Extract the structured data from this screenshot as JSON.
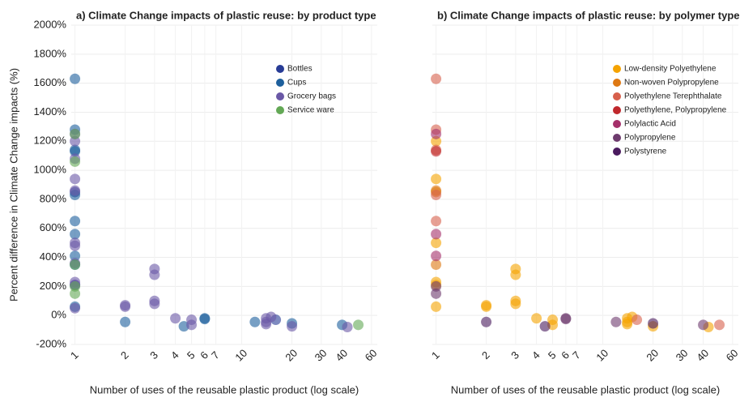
{
  "chart_data": [
    {
      "type": "scatter",
      "title": "a) Climate Change impacts of plastic reuse: by product type",
      "xlabel": "Number of uses of the reusable plastic product (log scale)",
      "ylabel": "Percent difference in Climate Change impacts (%)",
      "xscale": "log",
      "xlim": [
        0.95,
        65
      ],
      "ylim": [
        -200,
        2000
      ],
      "grid": true,
      "legend": "top-right",
      "xticks": [
        1,
        2,
        3,
        4,
        5,
        6,
        7,
        10,
        20,
        30,
        40,
        60
      ],
      "yticks": [
        {
          "value": -200,
          "label": "-200%"
        },
        {
          "value": 0,
          "label": "0%"
        },
        {
          "value": 200,
          "label": "200%"
        },
        {
          "value": 400,
          "label": "400%"
        },
        {
          "value": 600,
          "label": "600%"
        },
        {
          "value": 800,
          "label": "800%"
        },
        {
          "value": 1000,
          "label": "1000%"
        },
        {
          "value": 1200,
          "label": "1200%"
        },
        {
          "value": 1400,
          "label": "1400%"
        },
        {
          "value": 1600,
          "label": "1600%"
        },
        {
          "value": 1800,
          "label": "1800%"
        },
        {
          "value": 2000,
          "label": "2000%"
        }
      ],
      "series": [
        {
          "name": "Bottles",
          "color": "#283c96",
          "x": [
            1,
            1,
            16
          ],
          "values": [
            850,
            210,
            -30
          ]
        },
        {
          "name": "Cups",
          "color": "#1d5f9c",
          "x": [
            1,
            1,
            1,
            1,
            1,
            1,
            1,
            1,
            1,
            1,
            2,
            4.5,
            6,
            6,
            12,
            20,
            40
          ],
          "values": [
            1630,
            1280,
            1140,
            1130,
            830,
            650,
            560,
            410,
            350,
            60,
            -45,
            -75,
            -20,
            -25,
            -45,
            -55,
            -65
          ]
        },
        {
          "name": "Grocery bags",
          "color": "#6a58a6",
          "x": [
            1,
            1,
            1,
            1,
            1,
            1,
            1,
            1,
            1,
            1,
            1,
            2,
            2,
            3,
            3,
            3,
            3,
            4,
            5,
            5,
            14,
            14,
            14,
            15,
            20,
            43
          ],
          "values": [
            1200,
            1080,
            940,
            860,
            500,
            480,
            360,
            230,
            210,
            50,
            1250,
            70,
            60,
            320,
            280,
            100,
            80,
            -20,
            -30,
            -65,
            -20,
            -45,
            -60,
            -10,
            -75,
            -80
          ]
        },
        {
          "name": "Service ware",
          "color": "#63a855",
          "x": [
            1,
            1,
            1,
            1,
            1,
            50
          ],
          "values": [
            1250,
            1060,
            350,
            200,
            150,
            -65
          ]
        }
      ]
    },
    {
      "type": "scatter",
      "title": "b) Climate Change impacts of plastic reuse: by polymer type",
      "xlabel": "Number of uses of the reusable plastic product (log scale)",
      "xscale": "log",
      "xlim": [
        0.95,
        65
      ],
      "ylim": [
        -200,
        2000
      ],
      "grid": true,
      "legend": "top-right",
      "xticks": [
        1,
        2,
        3,
        4,
        5,
        6,
        7,
        10,
        20,
        30,
        40,
        60
      ],
      "yticks": [
        -200,
        0,
        200,
        400,
        600,
        800,
        1000,
        1200,
        1400,
        1600,
        1800,
        2000
      ],
      "series": [
        {
          "name": "Low-density Polyethylene",
          "color": "#f5a300",
          "x": [
            1,
            1,
            1,
            1,
            1,
            1,
            2,
            2,
            3,
            3,
            3,
            3,
            4,
            5,
            5,
            14,
            14,
            14,
            15,
            20,
            43
          ],
          "values": [
            1200,
            940,
            500,
            230,
            210,
            60,
            70,
            60,
            320,
            280,
            100,
            80,
            -20,
            -30,
            -65,
            -20,
            -45,
            -60,
            -10,
            -75,
            -80
          ]
        },
        {
          "name": "Non-woven Polypropylene",
          "color": "#de7812",
          "x": [
            1,
            1,
            1
          ],
          "values": [
            860,
            850,
            350
          ]
        },
        {
          "name": "Polyethylene Terephthalate",
          "color": "#d7604c",
          "x": [
            1,
            1,
            1,
            1,
            1,
            16,
            50
          ],
          "values": [
            1630,
            1280,
            1140,
            830,
            650,
            -30,
            -65
          ]
        },
        {
          "name": "Polyethylene, Polypropylene",
          "color": "#c0282c",
          "x": [
            1
          ],
          "values": [
            1130
          ]
        },
        {
          "name": "Polylactic Acid",
          "color": "#a5306a",
          "x": [
            1,
            1,
            1
          ],
          "values": [
            1250,
            560,
            410
          ]
        },
        {
          "name": "Polypropylene",
          "color": "#6e3b6e",
          "x": [
            1,
            1,
            6,
            6,
            12,
            40
          ],
          "values": [
            200,
            150,
            -20,
            -25,
            -45,
            -65
          ]
        },
        {
          "name": "Polystyrene",
          "color": "#4a1a5e",
          "x": [
            2,
            4.5,
            20
          ],
          "values": [
            -45,
            -75,
            -55
          ]
        }
      ]
    }
  ]
}
